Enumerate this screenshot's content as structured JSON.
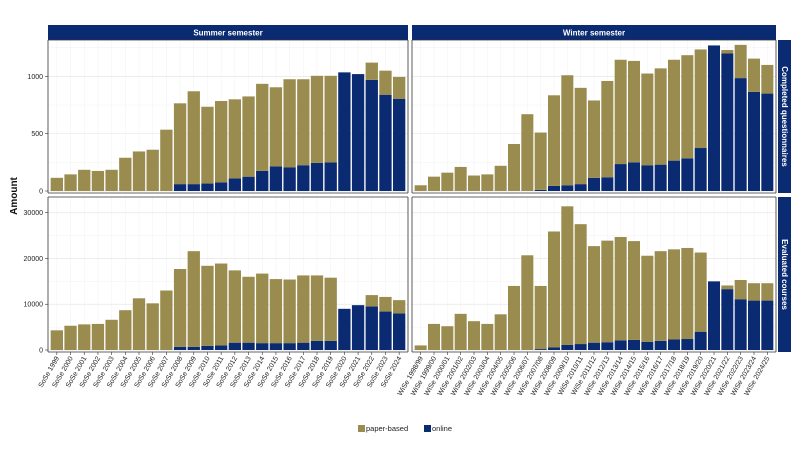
{
  "colors": {
    "paper": "#9a8c4e",
    "online": "#0a2a72",
    "strip": "#0a2a72",
    "grid": "#e6e6e6"
  },
  "chart_data": {
    "type": "bar",
    "stacked": true,
    "ylabel": "Amount",
    "grid": true,
    "legend_position": "bottom",
    "legend": [
      {
        "key": "paper",
        "label": "paper-based"
      },
      {
        "key": "online",
        "label": "online"
      }
    ],
    "columns": [
      {
        "label": "Summer semester"
      },
      {
        "label": "Winter semester"
      }
    ],
    "rows": [
      {
        "label": "Completed questionnaires",
        "ylim": [
          0,
          1300
        ],
        "ticks": [
          0,
          500,
          1000
        ]
      },
      {
        "label": "Evaluated courses",
        "ylim": [
          0,
          33000
        ],
        "ticks": [
          0,
          10000,
          20000,
          30000
        ]
      }
    ],
    "panels": [
      {
        "row": 0,
        "col": 0,
        "categories": [
          "SoSe 1999",
          "SoSe 2000",
          "SoSe 2001",
          "SoSe 2002",
          "SoSe 2003",
          "SoSe 2004",
          "SoSe 2005",
          "SoSe 2006",
          "SoSe 2007",
          "SoSe 2008",
          "SoSe 2009",
          "SoSe 2010",
          "SoSe 2011",
          "SoSe 2012",
          "SoSe 2013",
          "SoSe 2014",
          "SoSe 2015",
          "SoSe 2016",
          "SoSe 2017",
          "SoSe 2018",
          "SoSe 2019",
          "SoSe 2020",
          "SoSe 2021",
          "SoSe 2022",
          "SoSe 2023",
          "SoSe 2024"
        ],
        "series": [
          {
            "key": "paper",
            "values": [
              115,
              145,
              185,
              175,
              185,
              290,
              345,
              360,
              535,
              705,
              810,
              670,
              710,
              690,
              700,
              760,
              690,
              770,
              750,
              760,
              755,
              0,
              0,
              150,
              210,
              190
            ]
          },
          {
            "key": "online",
            "values": [
              0,
              0,
              0,
              0,
              0,
              0,
              0,
              0,
              0,
              60,
              60,
              65,
              75,
              110,
              125,
              175,
              215,
              205,
              225,
              245,
              250,
              1035,
              1020,
              970,
              840,
              805
            ]
          }
        ]
      },
      {
        "row": 0,
        "col": 1,
        "categories": [
          "WiSe 1998/99",
          "WiSe 1999/00",
          "WiSe 2000/01",
          "WiSe 2001/02",
          "WiSe 2002/03",
          "WiSe 2003/04",
          "WiSe 2004/05",
          "WiSe 2005/06",
          "WiSe 2006/07",
          "WiSe 2007/08",
          "WiSe 2008/09",
          "WiSe 2009/10",
          "WiSe 2010/11",
          "WiSe 2011/12",
          "WiSe 2012/13",
          "WiSe 2013/14",
          "WiSe 2014/15",
          "WiSe 2015/16",
          "WiSe 2016/17",
          "WiSe 2017/18",
          "WiSe 2018/19",
          "WiSe 2019/20",
          "WiSe 2020/21",
          "WiSe 2021/22",
          "WiSe 2022/23",
          "WiSe 2023/24",
          "WiSe 2024/25"
        ],
        "series": [
          {
            "key": "paper",
            "values": [
              50,
              125,
              160,
              210,
              135,
              145,
              220,
              410,
              670,
              500,
              790,
              960,
              840,
              675,
              840,
              910,
              885,
              800,
              840,
              880,
              900,
              860,
              0,
              30,
              290,
              290,
              250
            ]
          },
          {
            "key": "online",
            "values": [
              0,
              0,
              0,
              0,
              0,
              0,
              0,
              0,
              0,
              10,
              45,
              50,
              60,
              115,
              120,
              235,
              250,
              225,
              230,
              265,
              285,
              375,
              1270,
              1200,
              985,
              865,
              850
            ]
          }
        ]
      },
      {
        "row": 1,
        "col": 0,
        "categories": [
          "SoSe 1999",
          "SoSe 2000",
          "SoSe 2001",
          "SoSe 2002",
          "SoSe 2003",
          "SoSe 2004",
          "SoSe 2005",
          "SoSe 2006",
          "SoSe 2007",
          "SoSe 2008",
          "SoSe 2009",
          "SoSe 2010",
          "SoSe 2011",
          "SoSe 2012",
          "SoSe 2013",
          "SoSe 2014",
          "SoSe 2015",
          "SoSe 2016",
          "SoSe 2017",
          "SoSe 2018",
          "SoSe 2019",
          "SoSe 2020",
          "SoSe 2021",
          "SoSe 2022",
          "SoSe 2023",
          "SoSe 2024"
        ],
        "series": [
          {
            "key": "paper",
            "values": [
              4300,
              5300,
              5600,
              5700,
              6600,
              8700,
              11300,
              10200,
              13000,
              17000,
              20900,
              17500,
              17900,
              15800,
              14400,
              15200,
              14000,
              13900,
              14700,
              14300,
              13800,
              0,
              0,
              2500,
              3200,
              2900
            ]
          },
          {
            "key": "online",
            "values": [
              0,
              0,
              0,
              0,
              0,
              0,
              0,
              0,
              0,
              700,
              700,
              900,
              1000,
              1600,
              1600,
              1500,
              1500,
              1500,
              1600,
              2000,
              2000,
              9000,
              9800,
              9500,
              8400,
              8000
            ]
          }
        ]
      },
      {
        "row": 1,
        "col": 1,
        "categories": [
          "WiSe 1998/99",
          "WiSe 1999/00",
          "WiSe 2000/01",
          "WiSe 2001/02",
          "WiSe 2002/03",
          "WiSe 2003/04",
          "WiSe 2004/05",
          "WiSe 2005/06",
          "WiSe 2006/07",
          "WiSe 2007/08",
          "WiSe 2008/09",
          "WiSe 2009/10",
          "WiSe 2010/11",
          "WiSe 2011/12",
          "WiSe 2012/13",
          "WiSe 2013/14",
          "WiSe 2014/15",
          "WiSe 2015/16",
          "WiSe 2016/17",
          "WiSe 2017/18",
          "WiSe 2018/19",
          "WiSe 2019/20",
          "WiSe 2020/21",
          "WiSe 2021/22",
          "WiSe 2022/23",
          "WiSe 2023/24",
          "WiSe 2024/25"
        ],
        "series": [
          {
            "key": "paper",
            "values": [
              1000,
              5700,
              5200,
              7900,
              6300,
              5700,
              7800,
              14000,
              20700,
              13800,
              25300,
              30300,
              26200,
              21100,
              22200,
              22600,
              21600,
              18800,
              19600,
              19700,
              19900,
              17300,
              0,
              800,
              4200,
              3800,
              3800
            ]
          },
          {
            "key": "online",
            "values": [
              0,
              0,
              0,
              0,
              0,
              0,
              0,
              0,
              0,
              200,
              600,
              1100,
              1300,
              1600,
              1700,
              2100,
              2200,
              1800,
              2000,
              2300,
              2400,
              4000,
              15000,
              13300,
              11100,
              10800,
              10800
            ]
          }
        ]
      }
    ]
  }
}
